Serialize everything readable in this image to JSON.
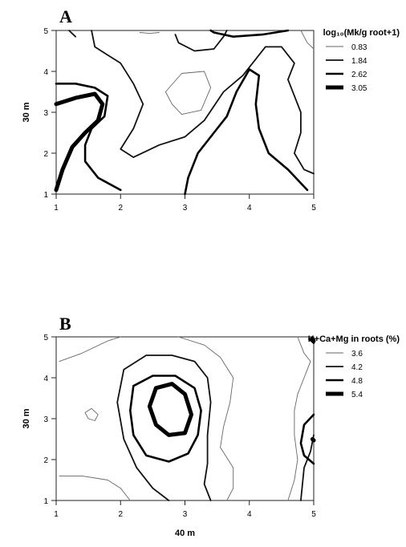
{
  "chart_data": [
    {
      "type": "contour",
      "panel_label": "A",
      "x_ticks": [
        "1",
        "2",
        "3",
        "4",
        "5"
      ],
      "y_ticks": [
        "1",
        "2",
        "3",
        "4",
        "5"
      ],
      "xlabel": "",
      "ylabel": "30 m",
      "xlim": [
        1,
        5
      ],
      "ylim": [
        1,
        5
      ],
      "legend": {
        "title": "log₁₀(Mk/g root+1)",
        "position": "right",
        "levels": [
          {
            "label": "0.83",
            "value": 0.83
          },
          {
            "label": "1.84",
            "value": 1.84
          },
          {
            "label": "2.62",
            "value": 2.62
          },
          {
            "label": "3.05",
            "value": 3.05
          }
        ]
      },
      "contours": [
        {
          "level": 0.83,
          "points": [
            [
              2.8,
              3.2
            ],
            [
              2.7,
              3.5
            ],
            [
              2.95,
              3.95
            ],
            [
              3.3,
              4.0
            ],
            [
              3.4,
              3.6
            ],
            [
              3.25,
              3.05
            ],
            [
              2.95,
              2.95
            ],
            [
              2.8,
              3.2
            ]
          ]
        },
        {
          "level": 0.83,
          "points": [
            [
              2.3,
              4.95
            ],
            [
              2.45,
              4.93
            ],
            [
              2.6,
              4.95
            ]
          ]
        },
        {
          "level": 0.83,
          "points": [
            [
              4.8,
              5.0
            ],
            [
              4.9,
              4.7
            ],
            [
              5.0,
              4.55
            ]
          ]
        },
        {
          "level": 1.84,
          "points": [
            [
              1.2,
              5.0
            ],
            [
              1.3,
              4.85
            ]
          ]
        },
        {
          "level": 1.84,
          "points": [
            [
              1.55,
              5.0
            ],
            [
              1.6,
              4.6
            ],
            [
              1.8,
              4.4
            ],
            [
              2.0,
              4.2
            ],
            [
              2.2,
              3.7
            ],
            [
              2.35,
              3.2
            ],
            [
              2.2,
              2.6
            ],
            [
              2.0,
              2.1
            ],
            [
              2.2,
              1.9
            ],
            [
              2.6,
              2.2
            ],
            [
              3.0,
              2.4
            ],
            [
              3.3,
              2.8
            ],
            [
              3.6,
              3.5
            ],
            [
              3.9,
              3.9
            ],
            [
              4.1,
              4.3
            ],
            [
              4.25,
              4.6
            ],
            [
              4.5,
              4.6
            ],
            [
              4.7,
              4.2
            ],
            [
              4.6,
              3.8
            ],
            [
              4.7,
              3.4
            ],
            [
              4.8,
              3.0
            ],
            [
              4.8,
              2.5
            ],
            [
              4.7,
              2.0
            ],
            [
              4.85,
              1.6
            ],
            [
              5.0,
              1.5
            ]
          ]
        },
        {
          "level": 1.84,
          "points": [
            [
              2.85,
              4.9
            ],
            [
              2.9,
              4.7
            ],
            [
              3.15,
              4.5
            ],
            [
              3.45,
              4.55
            ],
            [
              3.6,
              4.85
            ],
            [
              3.65,
              5.0
            ]
          ]
        },
        {
          "level": 2.62,
          "points": [
            [
              1.0,
              3.7
            ],
            [
              1.3,
              3.7
            ],
            [
              1.6,
              3.6
            ],
            [
              1.8,
              3.4
            ],
            [
              1.75,
              2.9
            ],
            [
              1.55,
              2.6
            ],
            [
              1.45,
              2.2
            ],
            [
              1.45,
              1.8
            ],
            [
              1.65,
              1.4
            ],
            [
              2.0,
              1.1
            ]
          ]
        },
        {
          "level": 2.62,
          "points": [
            [
              3.0,
              1.0
            ],
            [
              3.05,
              1.4
            ],
            [
              3.2,
              2.0
            ],
            [
              3.45,
              2.5
            ],
            [
              3.65,
              2.9
            ],
            [
              3.8,
              3.5
            ],
            [
              4.0,
              4.05
            ],
            [
              4.15,
              3.9
            ],
            [
              4.1,
              3.2
            ],
            [
              4.15,
              2.6
            ],
            [
              4.3,
              2.0
            ],
            [
              4.6,
              1.6
            ],
            [
              4.9,
              1.1
            ]
          ]
        },
        {
          "level": 2.62,
          "points": [
            [
              3.4,
              5.0
            ],
            [
              3.45,
              4.95
            ],
            [
              3.75,
              4.85
            ],
            [
              4.2,
              4.9
            ],
            [
              4.6,
              5.0
            ]
          ]
        },
        {
          "level": 3.05,
          "points": [
            [
              1.0,
              3.2
            ],
            [
              1.3,
              3.35
            ],
            [
              1.6,
              3.45
            ],
            [
              1.72,
              3.2
            ],
            [
              1.65,
              2.8
            ],
            [
              1.45,
              2.5
            ],
            [
              1.25,
              2.15
            ],
            [
              1.1,
              1.6
            ],
            [
              1.0,
              1.1
            ]
          ]
        }
      ]
    },
    {
      "type": "contour",
      "panel_label": "B",
      "x_ticks": [
        "1",
        "2",
        "3",
        "4",
        "5"
      ],
      "y_ticks": [
        "1",
        "2",
        "3",
        "4",
        "5"
      ],
      "xlabel": "40 m",
      "ylabel": "30 m",
      "xlim": [
        1,
        5
      ],
      "ylim": [
        1,
        5
      ],
      "legend": {
        "title": "K+Ca+Mg in roots (%)",
        "position": "right",
        "levels": [
          {
            "label": "3.6",
            "value": 3.6
          },
          {
            "label": "4.2",
            "value": 4.2
          },
          {
            "label": "4.8",
            "value": 4.8
          },
          {
            "label": "5.4",
            "value": 5.4
          }
        ]
      },
      "contours": [
        {
          "level": 3.6,
          "points": [
            [
              1.05,
              4.4
            ],
            [
              1.4,
              4.6
            ],
            [
              1.8,
              4.9
            ],
            [
              2.0,
              5.0
            ]
          ]
        },
        {
          "level": 3.6,
          "points": [
            [
              1.5,
              3.0
            ],
            [
              1.45,
              3.15
            ],
            [
              1.55,
              3.25
            ],
            [
              1.65,
              3.1
            ],
            [
              1.6,
              2.95
            ],
            [
              1.5,
              3.0
            ]
          ]
        },
        {
          "level": 3.6,
          "points": [
            [
              2.9,
              5.0
            ],
            [
              3.3,
              4.8
            ],
            [
              3.55,
              4.5
            ],
            [
              3.75,
              4.0
            ],
            [
              3.7,
              3.4
            ],
            [
              3.6,
              2.8
            ],
            [
              3.55,
              2.3
            ],
            [
              3.75,
              1.8
            ],
            [
              3.75,
              1.3
            ],
            [
              3.65,
              1.0
            ]
          ]
        },
        {
          "level": 3.6,
          "points": [
            [
              4.75,
              5.0
            ],
            [
              4.85,
              4.6
            ],
            [
              4.95,
              4.4
            ],
            [
              4.85,
              4.0
            ],
            [
              4.75,
              3.6
            ],
            [
              4.7,
              3.2
            ],
            [
              4.7,
              2.6
            ],
            [
              4.75,
              2.0
            ],
            [
              4.7,
              1.5
            ],
            [
              4.6,
              1.0
            ]
          ]
        },
        {
          "level": 3.6,
          "points": [
            [
              1.05,
              1.6
            ],
            [
              1.4,
              1.6
            ],
            [
              1.8,
              1.5
            ],
            [
              2.0,
              1.3
            ],
            [
              2.15,
              1.0
            ]
          ]
        },
        {
          "level": 4.2,
          "points": [
            [
              2.75,
              1.0
            ],
            [
              2.5,
              1.3
            ],
            [
              2.25,
              1.8
            ],
            [
              2.05,
              2.5
            ],
            [
              1.95,
              3.4
            ],
            [
              2.05,
              4.2
            ],
            [
              2.4,
              4.55
            ],
            [
              2.8,
              4.55
            ],
            [
              3.15,
              4.4
            ],
            [
              3.35,
              4.0
            ],
            [
              3.4,
              3.4
            ],
            [
              3.35,
              2.6
            ],
            [
              3.35,
              1.9
            ],
            [
              3.3,
              1.4
            ],
            [
              3.4,
              1.0
            ]
          ]
        },
        {
          "level": 4.2,
          "points": [
            [
              4.8,
              1.0
            ],
            [
              4.85,
              1.8
            ],
            [
              4.95,
              2.2
            ],
            [
              5.0,
              2.6
            ]
          ]
        },
        {
          "level": 4.8,
          "points": [
            [
              2.2,
              3.8
            ],
            [
              2.5,
              4.05
            ],
            [
              2.85,
              4.05
            ],
            [
              3.15,
              3.75
            ],
            [
              3.25,
              3.2
            ],
            [
              3.2,
              2.6
            ],
            [
              3.05,
              2.15
            ],
            [
              2.75,
              1.95
            ],
            [
              2.4,
              2.1
            ],
            [
              2.2,
              2.6
            ],
            [
              2.15,
              3.2
            ],
            [
              2.2,
              3.8
            ]
          ]
        },
        {
          "level": 4.8,
          "points": [
            [
              5.0,
              3.1
            ],
            [
              4.85,
              2.85
            ],
            [
              4.8,
              2.4
            ],
            [
              4.85,
              2.1
            ],
            [
              5.0,
              1.9
            ]
          ]
        },
        {
          "level": 4.8,
          "points": [
            [
              4.93,
              4.95
            ],
            [
              5.0,
              4.85
            ]
          ]
        },
        {
          "level": 5.4,
          "points": [
            [
              2.55,
              3.75
            ],
            [
              2.8,
              3.85
            ],
            [
              3.0,
              3.6
            ],
            [
              3.1,
              3.1
            ],
            [
              3.0,
              2.65
            ],
            [
              2.75,
              2.6
            ],
            [
              2.55,
              2.85
            ],
            [
              2.45,
              3.3
            ],
            [
              2.55,
              3.75
            ]
          ]
        },
        {
          "level": 5.4,
          "points": [
            [
              4.98,
              4.95
            ],
            [
              5.0,
              4.9
            ]
          ]
        },
        {
          "level": 5.4,
          "points": [
            [
              4.98,
              2.5
            ],
            [
              5.0,
              2.47
            ]
          ]
        }
      ]
    }
  ]
}
